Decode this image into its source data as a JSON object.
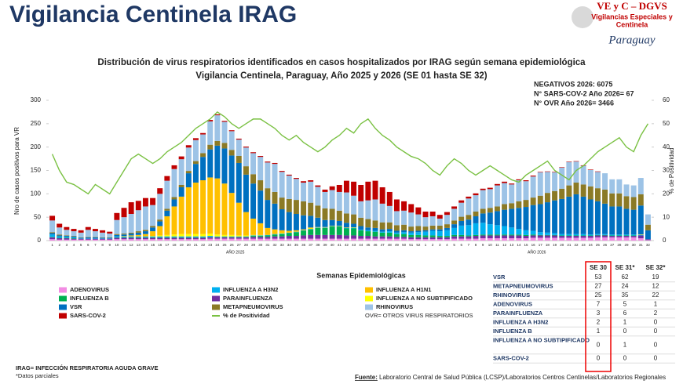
{
  "header": {
    "title": "Vigilancia Centinela IRAG",
    "logo_line1": "VE y C – DGVS",
    "logo_line2": "Vigilancias Especiales y",
    "logo_line3": "Centinela",
    "logo_country": "Paraguay"
  },
  "chart_data": {
    "type": "bar",
    "stacked": true,
    "title": "Distribución de virus respiratorios identificados en casos hospitalizados por IRAG según semana epidemiológica",
    "subtitle": "Vigilancia Centinela, Paraguay, Año 2025 y 2026 (SE 01 hasta SE 32)",
    "annotations": [
      "NEGATIVOS 2026: 6075",
      "N° SARS-COV-2 Año 2026= 67",
      "N° OVR Año 2026= 3466"
    ],
    "y_label": "Nro de casos positivos para VR",
    "y2_label": "% de Positividad",
    "x_label": "Semanas Epidemiológicas",
    "x_groups": [
      "AÑO 2025",
      "AÑO 2026"
    ],
    "legend_note": "OVR= OTROS VIRUS RESPIRATORIOS",
    "categories": [
      "1",
      "2",
      "3",
      "4",
      "5",
      "6",
      "7",
      "8",
      "9",
      "10",
      "11",
      "12",
      "13",
      "14",
      "15",
      "16",
      "17",
      "18",
      "19",
      "20",
      "21",
      "22",
      "23",
      "24",
      "25",
      "26",
      "27",
      "28",
      "29",
      "30",
      "31",
      "32",
      "33",
      "34",
      "35",
      "36",
      "37",
      "38",
      "39",
      "40",
      "41",
      "42",
      "43",
      "44",
      "45",
      "46",
      "47",
      "48",
      "49",
      "50",
      "51",
      "52",
      "1",
      "2",
      "3",
      "4",
      "5",
      "6",
      "7",
      "8",
      "9",
      "10",
      "11",
      "12",
      "13",
      "14",
      "15",
      "16",
      "17",
      "18",
      "19",
      "20",
      "21",
      "22",
      "23",
      "24",
      "25",
      "26",
      "27",
      "28",
      "29",
      "30",
      "31",
      "32"
    ],
    "ylim": [
      0,
      300
    ],
    "yticks": [
      0,
      50,
      100,
      150,
      200,
      250,
      300
    ],
    "y2lim": [
      0,
      60
    ],
    "y2ticks": [
      0,
      10,
      20,
      30,
      40,
      50,
      60
    ],
    "grid": false,
    "series": [
      {
        "name": "ADENOVIRUS",
        "color": "#f28ce3",
        "values": [
          3,
          2,
          2,
          2,
          2,
          2,
          2,
          2,
          2,
          3,
          3,
          3,
          3,
          3,
          3,
          3,
          3,
          3,
          3,
          3,
          3,
          3,
          4,
          4,
          4,
          4,
          4,
          4,
          4,
          4,
          4,
          4,
          4,
          4,
          4,
          4,
          4,
          4,
          4,
          4,
          4,
          4,
          4,
          4,
          4,
          4,
          4,
          4,
          4,
          4,
          3,
          3,
          3,
          3,
          3,
          3,
          4,
          4,
          4,
          4,
          5,
          5,
          5,
          5,
          5,
          5,
          5,
          6,
          6,
          6,
          6,
          6,
          6,
          6,
          6,
          6,
          7,
          7,
          7,
          7,
          7,
          7,
          5,
          1
        ]
      },
      {
        "name": "PARAINFLUENZA",
        "color": "#7030a0",
        "values": [
          4,
          3,
          3,
          2,
          2,
          2,
          2,
          2,
          2,
          3,
          3,
          3,
          3,
          3,
          3,
          3,
          3,
          3,
          3,
          3,
          3,
          3,
          3,
          3,
          3,
          3,
          3,
          3,
          4,
          4,
          4,
          5,
          5,
          6,
          6,
          7,
          8,
          8,
          8,
          8,
          8,
          7,
          7,
          6,
          6,
          5,
          5,
          5,
          4,
          4,
          4,
          4,
          4,
          4,
          4,
          4,
          5,
          5,
          5,
          6,
          6,
          6,
          6,
          6,
          6,
          6,
          5,
          5,
          5,
          5,
          5,
          4,
          4,
          4,
          4,
          4,
          4,
          4,
          3,
          3,
          3,
          3,
          6,
          2
        ]
      },
      {
        "name": "INFLUENZA B",
        "color": "#00b050",
        "values": [
          1,
          1,
          1,
          1,
          0,
          0,
          0,
          0,
          0,
          1,
          1,
          1,
          1,
          1,
          1,
          1,
          1,
          1,
          1,
          1,
          1,
          1,
          1,
          1,
          1,
          1,
          1,
          1,
          2,
          2,
          3,
          4,
          5,
          6,
          8,
          10,
          12,
          15,
          15,
          18,
          18,
          15,
          15,
          12,
          10,
          10,
          8,
          8,
          6,
          6,
          5,
          5,
          4,
          4,
          3,
          3,
          3,
          3,
          2,
          2,
          2,
          2,
          2,
          2,
          2,
          2,
          2,
          2,
          1,
          1,
          1,
          1,
          1,
          1,
          1,
          1,
          1,
          1,
          1,
          1,
          1,
          1,
          0,
          0
        ]
      },
      {
        "name": "INFLUENZA A H3N2",
        "color": "#00b0f0",
        "values": [
          5,
          3,
          2,
          2,
          1,
          1,
          1,
          1,
          1,
          2,
          2,
          2,
          2,
          2,
          2,
          2,
          2,
          2,
          2,
          2,
          2,
          2,
          2,
          1,
          1,
          1,
          1,
          1,
          1,
          1,
          1,
          1,
          1,
          1,
          1,
          1,
          1,
          1,
          1,
          1,
          1,
          1,
          1,
          1,
          2,
          2,
          2,
          3,
          3,
          4,
          5,
          6,
          8,
          10,
          10,
          12,
          15,
          20,
          22,
          25,
          25,
          22,
          20,
          18,
          15,
          12,
          10,
          8,
          6,
          5,
          4,
          3,
          3,
          3,
          3,
          2,
          2,
          2,
          2,
          2,
          2,
          2,
          1,
          0
        ]
      },
      {
        "name": "INFLUENZA A NO SUBTIPIFICADO",
        "color": "#ffff00",
        "values": [
          0,
          0,
          0,
          0,
          0,
          0,
          0,
          0,
          0,
          0,
          0,
          0,
          0,
          0,
          1,
          2,
          3,
          4,
          5,
          5,
          5,
          5,
          5,
          4,
          3,
          3,
          2,
          2,
          1,
          1,
          0,
          0,
          1,
          0,
          0,
          0,
          1,
          0,
          0,
          0,
          0,
          0,
          1,
          0,
          0,
          0,
          0,
          0,
          0,
          0,
          0,
          0,
          0,
          0,
          0,
          0,
          0,
          0,
          0,
          0,
          0,
          0,
          0,
          0,
          0,
          0,
          0,
          0,
          0,
          0,
          0,
          0,
          0,
          0,
          0,
          0,
          0,
          0,
          0,
          0,
          0,
          0,
          1,
          0
        ]
      },
      {
        "name": "INFLUENZA A H1N1",
        "color": "#ffc000",
        "values": [
          0,
          0,
          0,
          0,
          0,
          0,
          0,
          0,
          0,
          0,
          1,
          2,
          3,
          5,
          10,
          20,
          40,
          60,
          80,
          100,
          110,
          115,
          120,
          120,
          110,
          90,
          70,
          50,
          35,
          25,
          15,
          10,
          6,
          4,
          3,
          2,
          2,
          1,
          1,
          1,
          1,
          1,
          0,
          0,
          0,
          0,
          0,
          0,
          0,
          0,
          0,
          0,
          0,
          0,
          0,
          0,
          0,
          0,
          0,
          0,
          0,
          0,
          0,
          0,
          0,
          0,
          0,
          0,
          0,
          0,
          0,
          0,
          0,
          0,
          0,
          0,
          0,
          0,
          0,
          0,
          0,
          0,
          0,
          0
        ]
      },
      {
        "name": "VSR",
        "color": "#0070c0",
        "values": [
          3,
          2,
          2,
          2,
          1,
          2,
          2,
          1,
          1,
          3,
          3,
          4,
          5,
          6,
          8,
          10,
          12,
          15,
          20,
          30,
          40,
          50,
          60,
          70,
          75,
          80,
          85,
          80,
          75,
          70,
          60,
          55,
          45,
          40,
          35,
          30,
          25,
          20,
          15,
          12,
          10,
          10,
          8,
          8,
          6,
          6,
          5,
          5,
          4,
          4,
          3,
          3,
          3,
          3,
          4,
          5,
          8,
          10,
          12,
          15,
          20,
          25,
          30,
          35,
          40,
          45,
          50,
          55,
          60,
          65,
          70,
          75,
          80,
          85,
          80,
          75,
          70,
          65,
          60,
          60,
          55,
          53,
          62,
          19
        ]
      },
      {
        "name": "METAPNEUMOVIRUS",
        "color": "#8b7a26",
        "values": [
          2,
          2,
          1,
          1,
          1,
          1,
          1,
          1,
          1,
          2,
          2,
          2,
          3,
          3,
          3,
          4,
          4,
          5,
          5,
          5,
          6,
          8,
          10,
          10,
          12,
          12,
          15,
          18,
          20,
          22,
          25,
          25,
          25,
          28,
          30,
          30,
          28,
          26,
          25,
          24,
          22,
          20,
          20,
          18,
          18,
          16,
          15,
          14,
          12,
          12,
          10,
          10,
          8,
          8,
          8,
          8,
          8,
          9,
          10,
          10,
          10,
          10,
          10,
          12,
          12,
          14,
          15,
          16,
          18,
          20,
          20,
          22,
          24,
          25,
          26,
          28,
          28,
          30,
          28,
          28,
          27,
          27,
          24,
          12
        ]
      },
      {
        "name": "RHINOVIRUS",
        "color": "#9dc3e6",
        "values": [
          25,
          15,
          12,
          10,
          10,
          15,
          12,
          10,
          8,
          30,
          35,
          40,
          45,
          50,
          45,
          55,
          60,
          60,
          55,
          50,
          45,
          40,
          50,
          55,
          45,
          40,
          35,
          40,
          45,
          50,
          55,
          60,
          55,
          50,
          45,
          40,
          45,
          40,
          35,
          40,
          40,
          45,
          40,
          35,
          40,
          45,
          40,
          35,
          30,
          30,
          30,
          25,
          20,
          20,
          15,
          20,
          25,
          30,
          35,
          35,
          40,
          40,
          45,
          45,
          40,
          45,
          40,
          45,
          50,
          45,
          40,
          45,
          50,
          45,
          40,
          35,
          35,
          35,
          30,
          30,
          25,
          25,
          35,
          22
        ]
      },
      {
        "name": "SARS-COV-2",
        "color": "#c00000",
        "values": [
          10,
          8,
          6,
          5,
          5,
          6,
          5,
          5,
          4,
          15,
          20,
          25,
          20,
          18,
          15,
          12,
          10,
          8,
          6,
          5,
          4,
          3,
          3,
          2,
          2,
          2,
          2,
          2,
          2,
          2,
          2,
          2,
          2,
          2,
          2,
          3,
          3,
          3,
          5,
          8,
          15,
          25,
          30,
          35,
          40,
          40,
          35,
          30,
          25,
          20,
          18,
          15,
          12,
          10,
          8,
          6,
          5,
          5,
          4,
          4,
          3,
          3,
          3,
          3,
          2,
          2,
          2,
          2,
          1,
          1,
          1,
          1,
          1,
          1,
          1,
          1,
          1,
          0,
          0,
          0,
          0,
          0,
          0,
          0
        ]
      },
      {
        "name": "% de Positividad",
        "color": "#7ac143",
        "axis": "y2",
        "type": "line",
        "values": [
          37,
          30,
          25,
          24,
          22,
          20,
          24,
          22,
          20,
          25,
          30,
          35,
          37,
          35,
          33,
          35,
          38,
          40,
          42,
          45,
          48,
          50,
          52,
          55,
          53,
          50,
          48,
          50,
          52,
          52,
          50,
          48,
          45,
          43,
          45,
          42,
          40,
          38,
          40,
          43,
          45,
          48,
          46,
          50,
          52,
          48,
          45,
          43,
          40,
          38,
          36,
          35,
          33,
          30,
          28,
          32,
          35,
          33,
          30,
          28,
          30,
          32,
          30,
          28,
          26,
          25,
          28,
          30,
          32,
          34,
          30,
          28,
          26,
          30,
          32,
          35,
          38,
          40,
          42,
          44,
          40,
          38,
          45,
          50
        ]
      }
    ]
  },
  "table": {
    "columns": [
      "SE 30",
      "SE 31*",
      "SE 32*"
    ],
    "rows": [
      [
        "VSR",
        53,
        62,
        19
      ],
      [
        "METAPNEUMOVIRUS",
        27,
        24,
        12
      ],
      [
        "RHINOVIRUS",
        25,
        35,
        22
      ],
      [
        "ADENOVIRUS",
        7,
        5,
        1
      ],
      [
        "PARAINFLUENZA",
        3,
        6,
        2
      ],
      [
        "INFLUENZA A H3N2",
        2,
        1,
        0
      ],
      [
        "INFLUENZA B",
        1,
        0,
        0
      ],
      [
        "INFLUENZA A NO SUBTIPIFICADO",
        0,
        1,
        0
      ],
      [
        "SARS-COV-2",
        0,
        0,
        0
      ]
    ]
  },
  "footer": {
    "notes": [
      "IRAG= INFECCIÓN RESPIRATORIA AGUDA GRAVE",
      "*Datos parciales"
    ],
    "source_label": "Fuente:",
    "source": "Laboratorio Central de Salud Pública (LCSP)/Laboratorios Centros Centinelas/Laboratorios Regionales"
  }
}
